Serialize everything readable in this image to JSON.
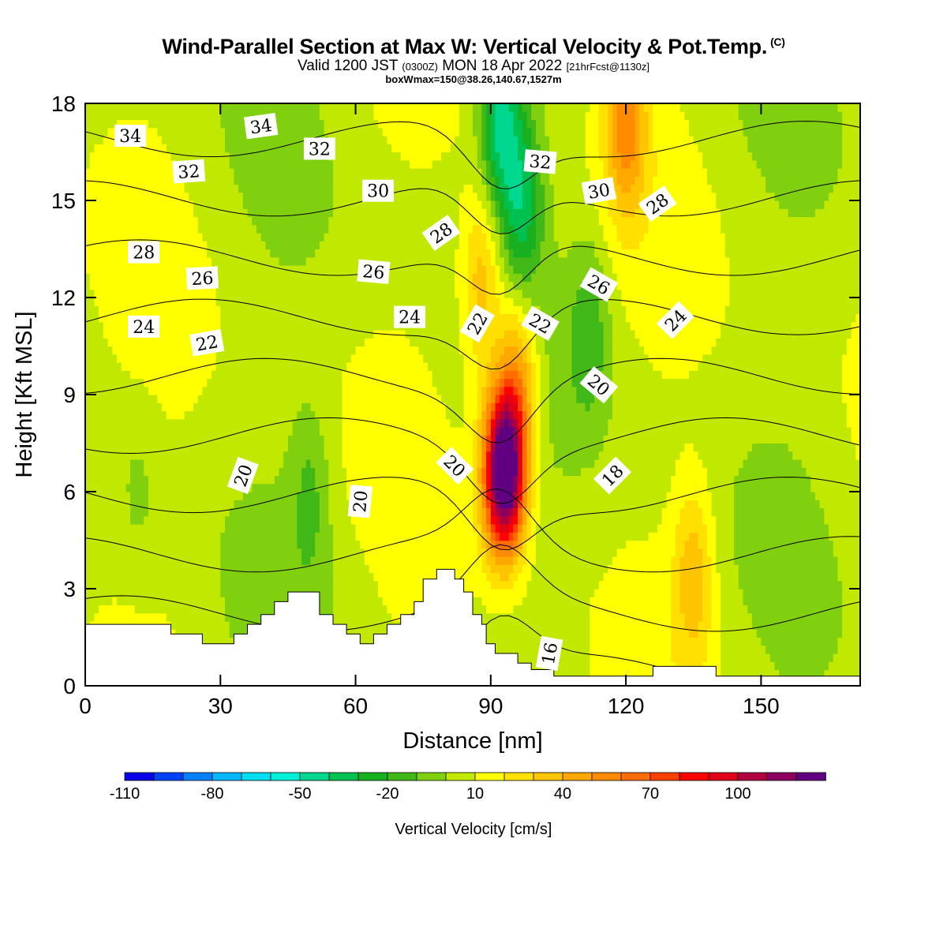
{
  "title": {
    "main": "Wind-Parallel Section at Max W: Vertical Velocity & Pot.Temp.",
    "copyright": "(C)",
    "valid_prefix": "Valid 1200 JST",
    "valid_utc": "(0300Z)",
    "valid_date": "MON 18 Apr 2022",
    "forecast": "[21hrFcst@1130z]",
    "box_info": "boxWmax=150@38.26,140.67,1527m"
  },
  "chart_data": {
    "type": "heatmap",
    "xlabel": "Distance [nm]",
    "ylabel": "Height [Kft MSL]",
    "xlim": [
      0,
      172
    ],
    "ylim": [
      0,
      18
    ],
    "xticks": [
      0,
      30,
      60,
      90,
      120,
      150
    ],
    "yticks": [
      0,
      3,
      6,
      9,
      12,
      15,
      18
    ],
    "colorbar": {
      "label": "Vertical Velocity [cm/s]",
      "tick_values": [
        -110,
        -80,
        -50,
        -20,
        10,
        40,
        70,
        100
      ],
      "levels": [
        -110,
        -100,
        -90,
        -80,
        -70,
        -60,
        -50,
        -40,
        -30,
        -20,
        -10,
        0,
        10,
        20,
        30,
        40,
        50,
        60,
        70,
        80,
        90,
        100,
        110,
        120
      ],
      "colors": [
        "#0a00e8",
        "#0040ff",
        "#0080ff",
        "#00b8ff",
        "#00dcf0",
        "#00f0d8",
        "#00d890",
        "#00c050",
        "#18b020",
        "#40b818",
        "#80d010",
        "#c0e800",
        "#ffff00",
        "#ffe000",
        "#ffc400",
        "#ffa800",
        "#ff8c00",
        "#ff6c00",
        "#ff4000",
        "#ff0000",
        "#e00018",
        "#b00040",
        "#8c0060",
        "#600080"
      ]
    },
    "w_features": [
      {
        "x": 93,
        "z": 6.0,
        "w": 110,
        "note": "max updraft"
      },
      {
        "x": 93,
        "z": 7.5,
        "w": 80
      },
      {
        "x": 96,
        "z": 9.5,
        "w": 50
      },
      {
        "x": 88,
        "z": 12.5,
        "w": 40
      },
      {
        "x": 120,
        "z": 17.5,
        "w": 55
      },
      {
        "x": 135,
        "z": 3.5,
        "w": 35
      },
      {
        "x": 97,
        "z": 15.0,
        "w": -45
      },
      {
        "x": 92,
        "z": 17.5,
        "w": -55
      },
      {
        "x": 112,
        "z": 11.0,
        "w": -25
      },
      {
        "x": 50,
        "z": 6.0,
        "w": -20
      },
      {
        "x": 12,
        "z": 6.0,
        "w": -10
      }
    ],
    "theta_contours": [
      16,
      18,
      20,
      22,
      24,
      26,
      28,
      30,
      32,
      34
    ],
    "contour_labels": [
      {
        "text": "34",
        "x": 10,
        "z": 17.0,
        "rot": 0
      },
      {
        "text": "34",
        "x": 39,
        "z": 17.3,
        "rot": -8
      },
      {
        "text": "32",
        "x": 23,
        "z": 15.9,
        "rot": -4
      },
      {
        "text": "32",
        "x": 52,
        "z": 16.6,
        "rot": 0
      },
      {
        "text": "32",
        "x": 101,
        "z": 16.2,
        "rot": 5
      },
      {
        "text": "30",
        "x": 65,
        "z": 15.3,
        "rot": 0
      },
      {
        "text": "30",
        "x": 114,
        "z": 15.3,
        "rot": -10
      },
      {
        "text": "28",
        "x": 13,
        "z": 13.4,
        "rot": 0
      },
      {
        "text": "28",
        "x": 79,
        "z": 14.0,
        "rot": -35
      },
      {
        "text": "28",
        "x": 127,
        "z": 14.9,
        "rot": -35
      },
      {
        "text": "26",
        "x": 26,
        "z": 12.6,
        "rot": -3
      },
      {
        "text": "26",
        "x": 64,
        "z": 12.8,
        "rot": 5
      },
      {
        "text": "26",
        "x": 114,
        "z": 12.4,
        "rot": 30
      },
      {
        "text": "24",
        "x": 13,
        "z": 11.1,
        "rot": 0
      },
      {
        "text": "24",
        "x": 72,
        "z": 11.4,
        "rot": 0
      },
      {
        "text": "24",
        "x": 131,
        "z": 11.3,
        "rot": -45
      },
      {
        "text": "22",
        "x": 27,
        "z": 10.6,
        "rot": -10
      },
      {
        "text": "22",
        "x": 87,
        "z": 11.2,
        "rot": -60
      },
      {
        "text": "22",
        "x": 101,
        "z": 11.2,
        "rot": 30
      },
      {
        "text": "20",
        "x": 114,
        "z": 9.3,
        "rot": 40
      },
      {
        "text": "20",
        "x": 35,
        "z": 6.5,
        "rot": -70
      },
      {
        "text": "20",
        "x": 61,
        "z": 5.7,
        "rot": -85
      },
      {
        "text": "20",
        "x": 82,
        "z": 6.8,
        "rot": 45
      },
      {
        "text": "18",
        "x": 117,
        "z": 6.5,
        "rot": -45
      },
      {
        "text": "16",
        "x": 103,
        "z": 1.0,
        "rot": -80
      }
    ],
    "terrain_kft": [
      [
        0,
        1.9
      ],
      [
        19,
        1.9
      ],
      [
        19,
        1.6
      ],
      [
        26,
        1.6
      ],
      [
        26,
        1.3
      ],
      [
        33,
        1.3
      ],
      [
        33,
        1.6
      ],
      [
        36,
        1.6
      ],
      [
        36,
        1.9
      ],
      [
        39,
        1.9
      ],
      [
        39,
        2.2
      ],
      [
        42,
        2.2
      ],
      [
        42,
        2.6
      ],
      [
        45,
        2.6
      ],
      [
        45,
        2.9
      ],
      [
        52,
        2.9
      ],
      [
        52,
        2.2
      ],
      [
        55,
        2.2
      ],
      [
        55,
        1.9
      ],
      [
        58,
        1.9
      ],
      [
        58,
        1.6
      ],
      [
        61,
        1.6
      ],
      [
        61,
        1.3
      ],
      [
        64,
        1.3
      ],
      [
        64,
        1.6
      ],
      [
        67,
        1.6
      ],
      [
        67,
        1.9
      ],
      [
        70,
        1.9
      ],
      [
        70,
        2.2
      ],
      [
        73,
        2.2
      ],
      [
        73,
        2.6
      ],
      [
        75,
        2.6
      ],
      [
        75,
        3.3
      ],
      [
        78,
        3.3
      ],
      [
        78,
        3.6
      ],
      [
        82,
        3.6
      ],
      [
        82,
        3.3
      ],
      [
        84,
        3.3
      ],
      [
        84,
        2.9
      ],
      [
        86,
        2.9
      ],
      [
        86,
        2.2
      ],
      [
        88,
        2.2
      ],
      [
        88,
        1.9
      ],
      [
        89,
        1.9
      ],
      [
        89,
        1.3
      ],
      [
        91,
        1.3
      ],
      [
        91,
        1.0
      ],
      [
        96,
        1.0
      ],
      [
        96,
        0.7
      ],
      [
        99,
        0.7
      ],
      [
        99,
        0.5
      ],
      [
        104,
        0.5
      ],
      [
        104,
        0.3
      ],
      [
        126,
        0.3
      ],
      [
        126,
        0.6
      ],
      [
        140,
        0.6
      ],
      [
        140,
        0.3
      ],
      [
        172,
        0.3
      ]
    ]
  }
}
